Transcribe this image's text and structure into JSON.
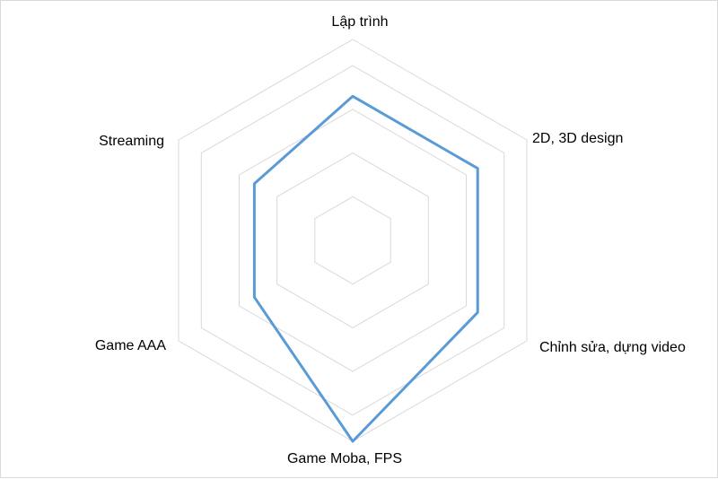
{
  "chart_data": {
    "type": "radar",
    "categories": [
      "Lập trình",
      "2D, 3D design",
      "Chỉnh sửa, dựng video",
      "Game Moba, FPS",
      "Game AAA",
      "Streaming"
    ],
    "series": [
      {
        "values": [
          3.3,
          3.3,
          3.3,
          4.6,
          2.6,
          2.6
        ]
      }
    ],
    "rlim": [
      0,
      4.6
    ],
    "rings": [
      1,
      2,
      3,
      4
    ],
    "grid": true,
    "legend": "none",
    "colors": {
      "series": "#5b9bd5",
      "grid": "#d9d9d9",
      "text": "#000000",
      "border": "#d9d9d9"
    }
  }
}
